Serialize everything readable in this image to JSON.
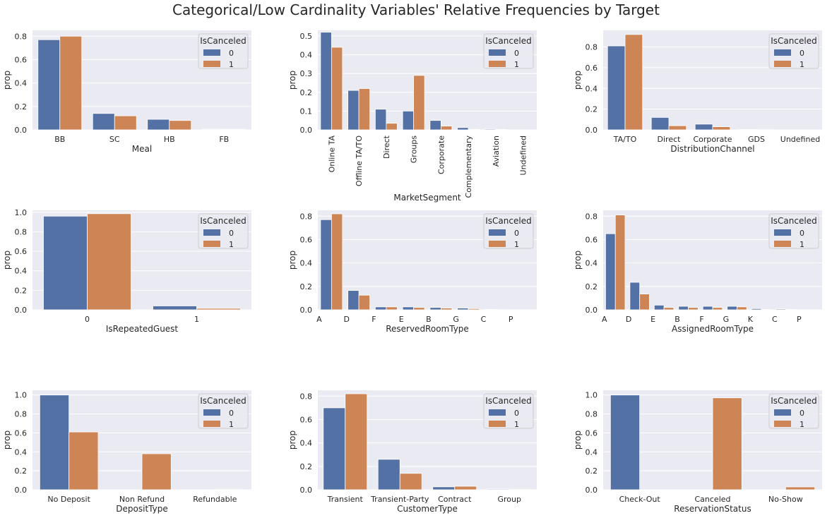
{
  "title": "Categorical/Low Cardinality Variables' Relative Frequencies by Target",
  "colors": {
    "0": "#5471a6",
    "1": "#cd8556",
    "panel_bg": "#eaeaf2",
    "grid": "#ffffff"
  },
  "chart_data": [
    {
      "type": "bar",
      "xlabel": "Meal",
      "ylabel": "prop",
      "legend_title": "IsCanceled",
      "legend_position": "top-right",
      "categories": [
        "BB",
        "SC",
        "HB",
        "FB"
      ],
      "ylim": [
        0,
        0.85
      ],
      "yticks": [
        "0.0",
        "0.2",
        "0.4",
        "0.6",
        "0.8"
      ],
      "series": [
        {
          "name": "0",
          "values": [
            0.77,
            0.14,
            0.09,
            0.005
          ]
        },
        {
          "name": "1",
          "values": [
            0.8,
            0.12,
            0.08,
            0.005
          ]
        }
      ]
    },
    {
      "type": "bar",
      "xlabel": "MarketSegment",
      "ylabel": "prop",
      "legend_title": "IsCanceled",
      "legend_position": "top-right",
      "rotate_ticks": true,
      "categories": [
        "Online TA",
        "Offline TA/TO",
        "Direct",
        "Groups",
        "Corporate",
        "Complementary",
        "Aviation",
        "Undefined"
      ],
      "ylim": [
        0,
        0.53
      ],
      "yticks": [
        "0.0",
        "0.1",
        "0.2",
        "0.3",
        "0.4",
        "0.5"
      ],
      "series": [
        {
          "name": "0",
          "values": [
            0.52,
            0.21,
            0.11,
            0.1,
            0.05,
            0.012,
            0.004,
            0.0
          ]
        },
        {
          "name": "1",
          "values": [
            0.44,
            0.22,
            0.035,
            0.29,
            0.02,
            0.003,
            0.002,
            0.0
          ]
        }
      ]
    },
    {
      "type": "bar",
      "xlabel": "DistributionChannel",
      "ylabel": "prop",
      "legend_title": "IsCanceled",
      "legend_position": "top-right",
      "categories": [
        "TA/TO",
        "Direct",
        "Corporate",
        "GDS",
        "Undefined"
      ],
      "ylim": [
        0,
        0.96
      ],
      "yticks": [
        "0.0",
        "0.2",
        "0.4",
        "0.6",
        "0.8"
      ],
      "series": [
        {
          "name": "0",
          "values": [
            0.81,
            0.12,
            0.055,
            0.003,
            0.0
          ]
        },
        {
          "name": "1",
          "values": [
            0.92,
            0.04,
            0.03,
            0.002,
            0.0
          ]
        }
      ]
    },
    {
      "type": "bar",
      "xlabel": "IsRepeatedGuest",
      "ylabel": "prop",
      "legend_title": "IsCanceled",
      "legend_position": "top-right",
      "categories": [
        "0",
        "1"
      ],
      "ylim": [
        0,
        1.02
      ],
      "yticks": [
        "0.0",
        "0.2",
        "0.4",
        "0.6",
        "0.8",
        "1.0"
      ],
      "series": [
        {
          "name": "0",
          "values": [
            0.96,
            0.04
          ]
        },
        {
          "name": "1",
          "values": [
            0.985,
            0.015
          ]
        }
      ]
    },
    {
      "type": "bar",
      "xlabel": "ReservedRoomType",
      "ylabel": "prop",
      "legend_title": "IsCanceled",
      "legend_position": "top-right",
      "tick_offset": "left",
      "categories": [
        "A",
        "D",
        "F",
        "E",
        "B",
        "G",
        "C",
        "P"
      ],
      "ylim": [
        0,
        0.85
      ],
      "yticks": [
        "0.0",
        "0.2",
        "0.4",
        "0.6",
        "0.8"
      ],
      "series": [
        {
          "name": "0",
          "values": [
            0.77,
            0.165,
            0.025,
            0.025,
            0.02,
            0.015,
            0.004,
            0.0
          ]
        },
        {
          "name": "1",
          "values": [
            0.82,
            0.125,
            0.025,
            0.02,
            0.015,
            0.01,
            0.002,
            0.0
          ]
        }
      ]
    },
    {
      "type": "bar",
      "xlabel": "AssignedRoomType",
      "ylabel": "prop",
      "legend_title": "IsCanceled",
      "legend_position": "top-right",
      "tick_offset": "left",
      "categories": [
        "A",
        "D",
        "E",
        "B",
        "F",
        "G",
        "K",
        "C",
        "P"
      ],
      "ylim": [
        0,
        0.85
      ],
      "yticks": [
        "0.0",
        "0.2",
        "0.4",
        "0.6",
        "0.8"
      ],
      "series": [
        {
          "name": "0",
          "values": [
            0.65,
            0.235,
            0.04,
            0.03,
            0.03,
            0.03,
            0.01,
            0.007,
            0.0
          ]
        },
        {
          "name": "1",
          "values": [
            0.81,
            0.135,
            0.02,
            0.02,
            0.02,
            0.025,
            0.003,
            0.003,
            0.0
          ]
        }
      ]
    },
    {
      "type": "bar",
      "xlabel": "DepositType",
      "ylabel": "prop",
      "legend_title": "IsCanceled",
      "legend_position": "top-right",
      "categories": [
        "No Deposit",
        "Non Refund",
        "Refundable"
      ],
      "ylim": [
        0,
        1.05
      ],
      "yticks": [
        "0.0",
        "0.2",
        "0.4",
        "0.6",
        "0.8",
        "1.0"
      ],
      "series": [
        {
          "name": "0",
          "values": [
            1.0,
            0.0,
            0.0
          ]
        },
        {
          "name": "1",
          "values": [
            0.61,
            0.38,
            0.002
          ]
        }
      ]
    },
    {
      "type": "bar",
      "xlabel": "CustomerType",
      "ylabel": "prop",
      "legend_title": "IsCanceled",
      "legend_position": "top-right",
      "categories": [
        "Transient",
        "Transient-Party",
        "Contract",
        "Group"
      ],
      "ylim": [
        0,
        0.85
      ],
      "yticks": [
        "0.0",
        "0.2",
        "0.4",
        "0.6",
        "0.8"
      ],
      "series": [
        {
          "name": "0",
          "values": [
            0.7,
            0.26,
            0.025,
            0.006
          ]
        },
        {
          "name": "1",
          "values": [
            0.82,
            0.14,
            0.03,
            0.002
          ]
        }
      ]
    },
    {
      "type": "bar",
      "xlabel": "ReservationStatus",
      "ylabel": "prop",
      "legend_title": "IsCanceled",
      "legend_position": "top-right",
      "categories": [
        "Check-Out",
        "Canceled",
        "No-Show"
      ],
      "ylim": [
        0,
        1.05
      ],
      "yticks": [
        "0.0",
        "0.2",
        "0.4",
        "0.6",
        "0.8",
        "1.0"
      ],
      "series": [
        {
          "name": "0",
          "values": [
            1.0,
            0.0,
            0.0
          ]
        },
        {
          "name": "1",
          "values": [
            0.0,
            0.97,
            0.03
          ]
        }
      ]
    }
  ]
}
